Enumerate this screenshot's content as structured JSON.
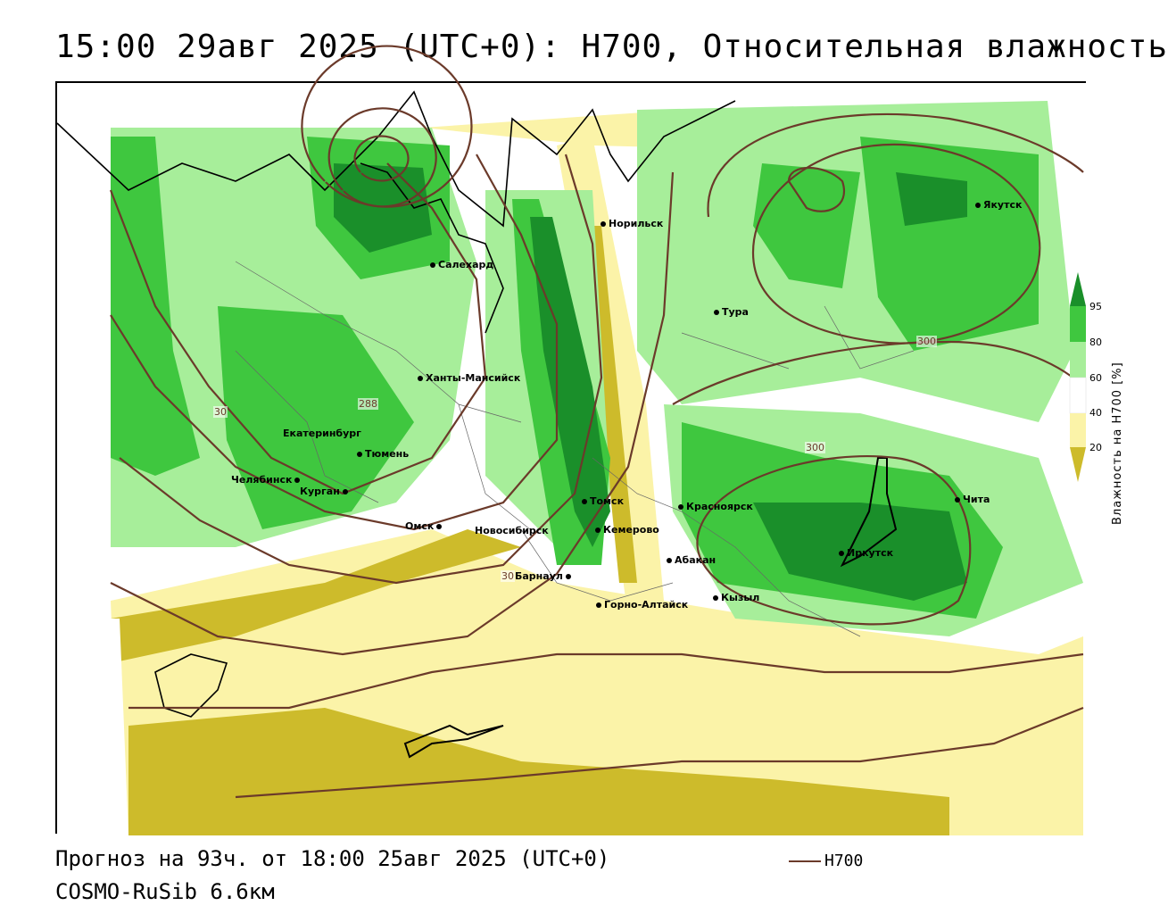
{
  "title": "15:00 29авг 2025 (UTC+0): H700, Относительная влажность",
  "footer": {
    "forecast": "Прогноз на 93ч. от 18:00 25авг 2025 (UTC+0)",
    "model": "COSMO-RuSib 6.6км",
    "line_legend": "H700"
  },
  "colorbar": {
    "title": "Влажность на H700 [%]",
    "ticks": [
      "95",
      "80",
      "60",
      "40",
      "20"
    ],
    "colors": {
      "c95": "#1a8f2a",
      "c80": "#3fc73f",
      "c60": "#a7ee9a",
      "c40": "#ffffff",
      "c20": "#fbf3a8",
      "c0": "#cdbb2b"
    }
  },
  "cities": [
    {
      "name": "Салехард"
    },
    {
      "name": "Норильск"
    },
    {
      "name": "Якутск"
    },
    {
      "name": "Тура"
    },
    {
      "name": "Ханты-Мансийск"
    },
    {
      "name": "Екатеринбург"
    },
    {
      "name": "Тюмень"
    },
    {
      "name": "Челябинск"
    },
    {
      "name": "Курган"
    },
    {
      "name": "Омск"
    },
    {
      "name": "Новосибирск"
    },
    {
      "name": "Томск"
    },
    {
      "name": "Кемерово"
    },
    {
      "name": "Красноярск"
    },
    {
      "name": "Барнаул"
    },
    {
      "name": "Абакан"
    },
    {
      "name": "Горно-Алтайск"
    },
    {
      "name": "Кызыл"
    },
    {
      "name": "Иркутск"
    },
    {
      "name": "Чита"
    }
  ],
  "contour_labels": [
    "288",
    "300",
    "300",
    "30",
    "30"
  ]
}
